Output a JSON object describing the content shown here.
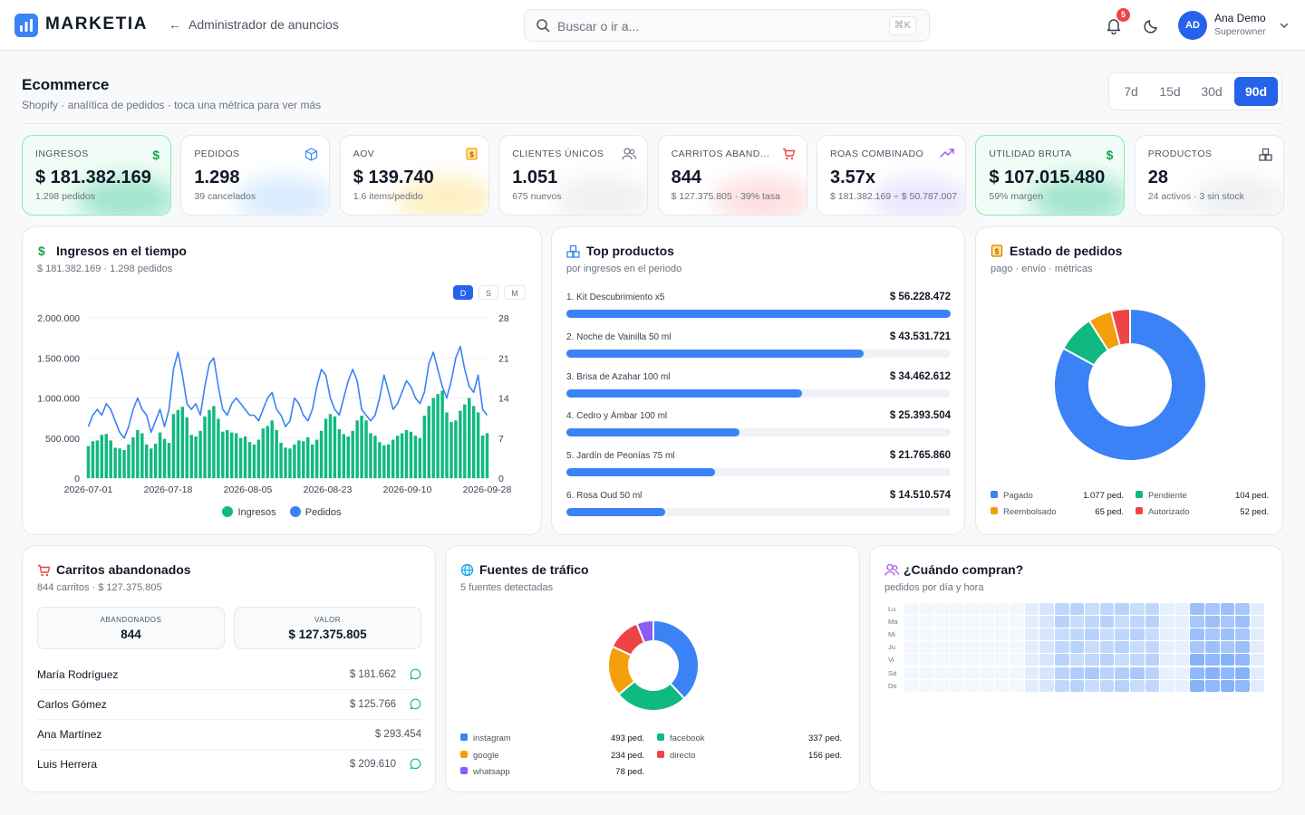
{
  "app": {
    "brand": "MARKETIA",
    "back_link": "Administrador de anuncios"
  },
  "search": {
    "placeholder": "Buscar o ir a...",
    "shortcut": "⌘K"
  },
  "notifications": {
    "count": "5"
  },
  "user": {
    "initials": "AD",
    "name": "Ana Demo",
    "role": "Superowner"
  },
  "page": {
    "title": "Ecommerce",
    "subtitle": "Shopify · analítica de pedidos · toca una métrica para ver más"
  },
  "range": {
    "options": [
      "7d",
      "15d",
      "30d",
      "90d"
    ],
    "selected": "90d"
  },
  "kpis": [
    {
      "label": "INGRESOS",
      "value": "$ 181.382.169",
      "sub": "1.298 pedidos",
      "icon": "dollar-icon",
      "color": "#16a34a"
    },
    {
      "label": "PEDIDOS",
      "value": "1.298",
      "sub": "39 cancelados",
      "icon": "box-icon",
      "color": "#3b82f6"
    },
    {
      "label": "AOV",
      "value": "$ 139.740",
      "sub": "1.6 items/pedido",
      "icon": "receipt-icon",
      "color": "#f59e0b"
    },
    {
      "label": "CLIENTES ÚNICOS",
      "value": "1.051",
      "sub": "675 nuevos",
      "icon": "users-icon",
      "color": "#6b7280"
    },
    {
      "label": "CARRITOS ABANDONADOS",
      "value": "844",
      "sub": "$ 127.375.805 · 39% tasa",
      "icon": "cart-icon",
      "color": "#ef4444"
    },
    {
      "label": "ROAS COMBINADO",
      "value": "3.57x",
      "sub": "$ 181.382.169 ÷ $ 50.787.007",
      "icon": "trend-up-icon",
      "color": "#a855f7"
    },
    {
      "label": "UTILIDAD BRUTA",
      "value": "$ 107.015.480",
      "sub": "59% margen",
      "icon": "dollar-icon",
      "color": "#16a34a"
    },
    {
      "label": "PRODUCTOS",
      "value": "28",
      "sub": "24 activos · 3 sin stock",
      "icon": "boxes-icon",
      "color": "#4b5563"
    }
  ],
  "revenue_card": {
    "title": "Ingresos en el tiempo",
    "subtitle": "$ 181.382.169 · 1.298 pedidos",
    "granularity": [
      "D",
      "S",
      "M"
    ],
    "granularity_selected": "D",
    "y_left_ticks": [
      "2.000.000",
      "1.500.000",
      "1.000.000",
      "500.000",
      "0"
    ],
    "y_right_ticks": [
      "28",
      "21",
      "14",
      "7",
      "0"
    ],
    "x_ticks": [
      "2026-07-01",
      "2026-07-18",
      "2026-08-05",
      "2026-08-23",
      "2026-09-10",
      "2026-09-28"
    ],
    "legend": [
      "Ingresos",
      "Pedidos"
    ]
  },
  "chart_data": {
    "type": "bar",
    "x_start": "2026-07-01",
    "x_end": "2026-09-30",
    "series": [
      {
        "name": "Ingresos",
        "kind": "bar",
        "axis": "left",
        "color": "#10b981",
        "values": [
          400000,
          460000,
          470000,
          540000,
          550000,
          470000,
          380000,
          370000,
          350000,
          420000,
          510000,
          600000,
          560000,
          420000,
          370000,
          430000,
          570000,
          490000,
          440000,
          800000,
          850000,
          890000,
          760000,
          540000,
          520000,
          590000,
          770000,
          850000,
          900000,
          740000,
          580000,
          600000,
          570000,
          560000,
          500000,
          520000,
          450000,
          420000,
          480000,
          620000,
          650000,
          720000,
          600000,
          440000,
          380000,
          370000,
          420000,
          470000,
          460000,
          510000,
          420000,
          480000,
          590000,
          740000,
          800000,
          770000,
          610000,
          550000,
          520000,
          590000,
          720000,
          780000,
          720000,
          560000,
          530000,
          450000,
          410000,
          420000,
          480000,
          530000,
          560000,
          600000,
          580000,
          530000,
          500000,
          780000,
          900000,
          1000000,
          1050000,
          1090000,
          820000,
          700000,
          720000,
          840000,
          920000,
          1000000,
          900000,
          820000,
          530000,
          560000
        ]
      },
      {
        "name": "Pedidos",
        "kind": "line",
        "axis": "right",
        "color": "#3b82f6",
        "values": [
          9,
          11,
          12,
          11,
          13,
          12,
          10,
          8,
          7,
          9,
          12,
          14,
          12,
          11,
          8,
          10,
          12,
          9,
          12,
          19,
          22,
          18,
          13,
          12,
          13,
          11,
          16,
          20,
          21,
          16,
          12,
          11,
          13,
          14,
          13,
          12,
          11,
          11,
          10,
          12,
          14,
          15,
          12,
          11,
          9,
          10,
          14,
          13,
          11,
          10,
          12,
          16,
          19,
          18,
          14,
          12,
          11,
          14,
          17,
          19,
          17,
          12,
          11,
          10,
          11,
          14,
          18,
          15,
          12,
          13,
          15,
          17,
          16,
          14,
          13,
          15,
          20,
          22,
          19,
          16,
          14,
          17,
          21,
          23,
          19,
          16,
          15,
          18,
          12,
          11
        ]
      }
    ],
    "ylim_left": [
      0,
      2000000
    ],
    "ylim_right": [
      0,
      28
    ],
    "legend_position": "bottom"
  },
  "top_products": {
    "title": "Top productos",
    "subtitle": "por ingresos en el periodo",
    "max": 56228472,
    "items": [
      {
        "name": "1. Kit Descubrimiento x5",
        "value": "$ 56.228.472",
        "amount": 56228472
      },
      {
        "name": "2. Noche de Vainilla 50 ml",
        "value": "$ 43.531.721",
        "amount": 43531721
      },
      {
        "name": "3. Brisa de Azahar 100 ml",
        "value": "$ 34.462.612",
        "amount": 34462612
      },
      {
        "name": "4. Cedro y Ámbar 100 ml",
        "value": "$ 25.393.504",
        "amount": 25393504
      },
      {
        "name": "5. Jardín de Peonías 75 ml",
        "value": "$ 21.765.860",
        "amount": 21765860
      },
      {
        "name": "6. Rosa Oud 50 ml",
        "value": "$ 14.510.574",
        "amount": 14510574
      }
    ]
  },
  "order_status": {
    "title": "Estado de pedidos",
    "subtitle": "pago · envío · métricas",
    "items": [
      {
        "label": "Pagado",
        "value": "1.077 ped.",
        "count": 1077,
        "color": "#3b82f6"
      },
      {
        "label": "Pendiente",
        "value": "104 ped.",
        "count": 104,
        "color": "#10b981"
      },
      {
        "label": "Reembolsado",
        "value": "65 ped.",
        "count": 65,
        "color": "#f59e0b"
      },
      {
        "label": "Autorizado",
        "value": "52 ped.",
        "count": 52,
        "color": "#ef4444"
      }
    ]
  },
  "abandoned": {
    "title": "Carritos abandonados",
    "subtitle": "844 carritos · $ 127.375.805",
    "stat_abandoned_label": "ABANDONADOS",
    "stat_abandoned_value": "844",
    "stat_value_label": "VALOR",
    "stat_value_value": "$ 127.375.805",
    "rows": [
      {
        "name": "María Rodríguez",
        "amount": "$ 181.662",
        "whatsapp": true
      },
      {
        "name": "Carlos Gómez",
        "amount": "$ 125.766",
        "whatsapp": true
      },
      {
        "name": "Ana Martínez",
        "amount": "$ 293.454",
        "whatsapp": false
      },
      {
        "name": "Luis Herrera",
        "amount": "$ 209.610",
        "whatsapp": true
      }
    ]
  },
  "traffic": {
    "title": "Fuentes de tráfico",
    "subtitle": "5 fuentes detectadas",
    "items": [
      {
        "label": "instagram",
        "value": "493 ped.",
        "count": 493,
        "color": "#3b82f6"
      },
      {
        "label": "facebook",
        "value": "337 ped.",
        "count": 337,
        "color": "#10b981"
      },
      {
        "label": "google",
        "value": "234 ped.",
        "count": 234,
        "color": "#f59e0b"
      },
      {
        "label": "directo",
        "value": "156 ped.",
        "count": 156,
        "color": "#ef4444"
      },
      {
        "label": "whatsapp",
        "value": "78 ped.",
        "count": 78,
        "color": "#8b5cf6"
      }
    ]
  },
  "when_buy": {
    "title": "¿Cuándo compran?",
    "subtitle": "pedidos por día y hora",
    "days": [
      "Lu",
      "Ma",
      "Mi",
      "Ju",
      "Vi",
      "Sá",
      "Do"
    ]
  }
}
